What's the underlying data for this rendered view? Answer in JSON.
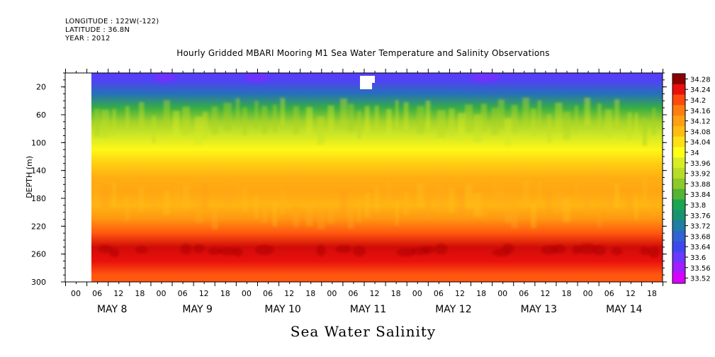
{
  "header": {
    "longitude": "LONGITUDE : 122W(-122)",
    "latitude": "LATITUDE : 36.8N",
    "year": "YEAR : 2012"
  },
  "title": "Hourly Gridded MBARI Mooring M1 Sea Water Temperature and Salinity Observations",
  "variable_label": "Sea Water Salinity",
  "chart_data": {
    "type": "heatmap",
    "title": "Hourly Gridded MBARI Mooring M1 Sea Water Temperature and Salinity Observations",
    "xlabel": "",
    "ylabel": "DEPTH (m)",
    "ylim": [
      300,
      0
    ],
    "y_ticks": [
      20,
      60,
      100,
      140,
      180,
      220,
      260,
      300
    ],
    "x_hour_ticks": [
      "00",
      "06",
      "12",
      "18",
      "00",
      "06",
      "12",
      "18",
      "00",
      "06",
      "12",
      "18",
      "00",
      "06",
      "12",
      "18",
      "00",
      "06",
      "12",
      "18",
      "00",
      "06",
      "12",
      "18",
      "00",
      "06",
      "12",
      "18"
    ],
    "x_day_labels": [
      "MAY  8",
      "MAY  9",
      "MAY 10",
      "MAY 11",
      "MAY 12",
      "MAY 13",
      "MAY 14"
    ],
    "data_start": "2012-05-08 06:00",
    "colorbar_levels": [
      "34.28",
      "34.24",
      "34.2",
      "34.16",
      "34.12",
      "34.08",
      "34.04",
      "34",
      "33.96",
      "33.92",
      "33.88",
      "33.84",
      "33.8",
      "33.76",
      "33.72",
      "33.68",
      "33.64",
      "33.6",
      "33.56",
      "33.52"
    ],
    "depth_profile": [
      {
        "depth": 10,
        "salinity": 33.62
      },
      {
        "depth": 30,
        "salinity": 33.7
      },
      {
        "depth": 50,
        "salinity": 33.82
      },
      {
        "depth": 70,
        "salinity": 33.9
      },
      {
        "depth": 90,
        "salinity": 33.95
      },
      {
        "depth": 110,
        "salinity": 34.01
      },
      {
        "depth": 130,
        "salinity": 34.06
      },
      {
        "depth": 150,
        "salinity": 34.1
      },
      {
        "depth": 170,
        "salinity": 34.11
      },
      {
        "depth": 190,
        "salinity": 34.09
      },
      {
        "depth": 210,
        "salinity": 34.13
      },
      {
        "depth": 230,
        "salinity": 34.19
      },
      {
        "depth": 250,
        "salinity": 34.25
      },
      {
        "depth": 270,
        "salinity": 34.24
      },
      {
        "depth": 290,
        "salinity": 34.19
      }
    ],
    "colors": {
      "34.28": "#8c0000",
      "33.52": "#d800ff"
    }
  }
}
